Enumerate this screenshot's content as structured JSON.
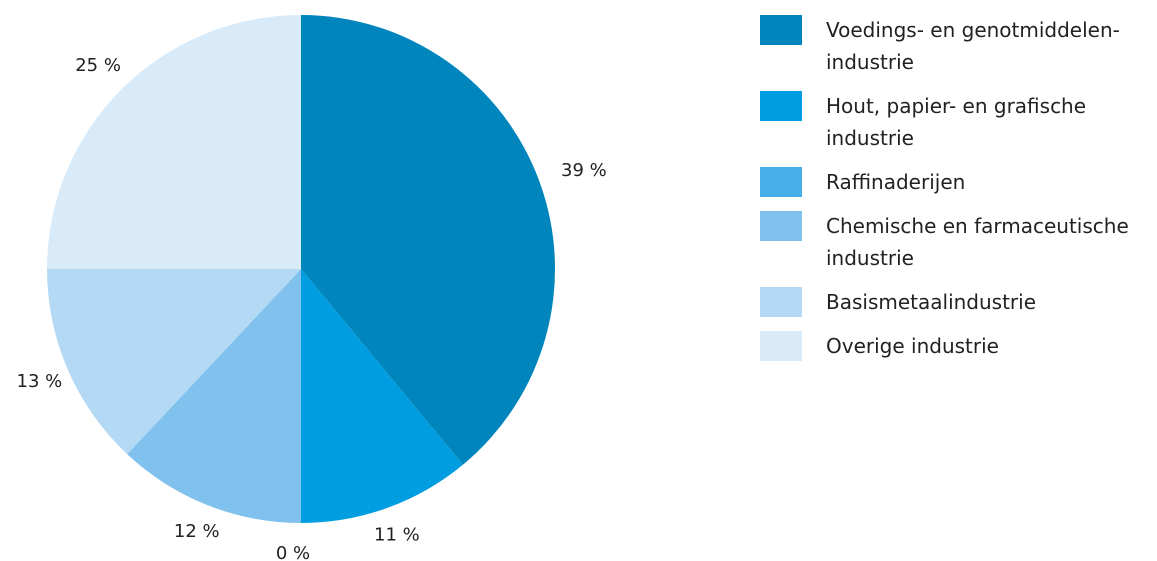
{
  "chart_data": {
    "type": "pie",
    "legend_position": "right",
    "slices": [
      {
        "name": "Voedings- en genotmiddelen-industrie",
        "value": 39,
        "label": "39 %",
        "color": "#0086bd"
      },
      {
        "name": "Hout, papier- en grafische industrie",
        "value": 11,
        "label": "11 %",
        "color": "#009de0"
      },
      {
        "name": "Raffinaderijen",
        "value": 0,
        "label": "0 %",
        "color": "#47aee8"
      },
      {
        "name": "Chemische en farmaceutische industrie",
        "value": 12,
        "label": "12 %",
        "color": "#80c2ed"
      },
      {
        "name": "Basismetaalindustrie",
        "value": 13,
        "label": "13 %",
        "color": "#b3d9f5"
      },
      {
        "name": "Overige industrie",
        "value": 25,
        "label": "25 %",
        "color": "#d9ebf9"
      }
    ]
  },
  "legend": {
    "items": [
      {
        "label": "Voedings- en genotmiddelen-industrie",
        "color": "#0086bd"
      },
      {
        "label": "Hout, papier- en grafische industrie",
        "color": "#009de0"
      },
      {
        "label": "Raffinaderijen",
        "color": "#47aee8"
      },
      {
        "label": "Chemische en farmaceutische industrie",
        "color": "#80c2ed"
      },
      {
        "label": "Basismetaalindustrie",
        "color": "#b3d9f5"
      },
      {
        "label": "Overige industrie",
        "color": "#d9ebf9"
      }
    ]
  }
}
